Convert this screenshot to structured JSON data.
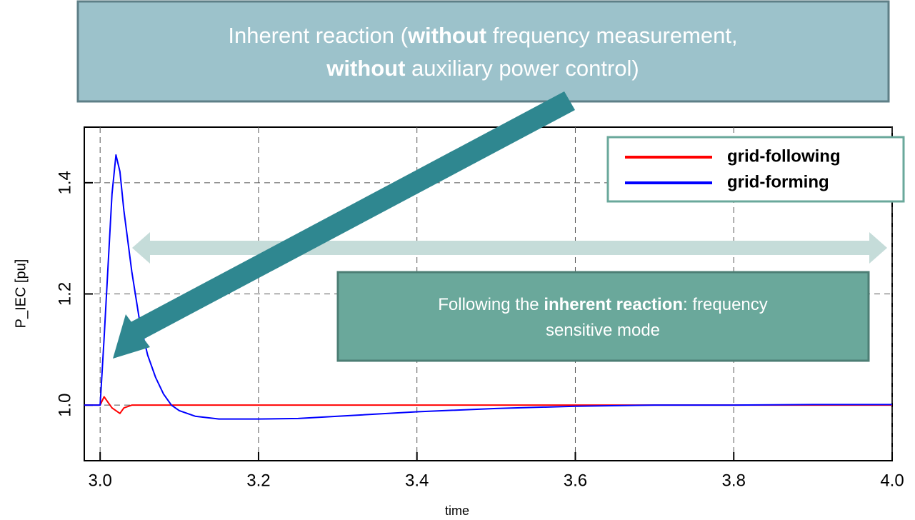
{
  "chart_data": {
    "type": "line",
    "x_label": "time",
    "y_label": "P_IEC [pu]",
    "x": [
      2.98,
      3.0,
      3.005,
      3.01,
      3.015,
      3.02,
      3.025,
      3.03,
      3.04,
      3.05,
      3.06,
      3.07,
      3.08,
      3.09,
      3.1,
      3.12,
      3.15,
      3.2,
      3.25,
      3.3,
      3.4,
      3.5,
      3.6,
      3.7,
      3.8,
      3.9,
      4.0
    ],
    "series": [
      {
        "name": "grid-following",
        "color": "#ff0000",
        "values": [
          1.0,
          1.0,
          1.015,
          1.005,
          0.995,
          0.99,
          0.985,
          0.995,
          1.0,
          1.0,
          1.0,
          1.0,
          1.0,
          1.0,
          1.0,
          1.0,
          1.0,
          1.0,
          1.0,
          1.0,
          1.0,
          1.0,
          1.0,
          1.0,
          1.0,
          1.0,
          1.0
        ]
      },
      {
        "name": "grid-forming",
        "color": "#0000ff",
        "values": [
          1.0,
          1.0,
          1.12,
          1.25,
          1.38,
          1.45,
          1.42,
          1.35,
          1.24,
          1.15,
          1.09,
          1.05,
          1.02,
          1.0,
          0.99,
          0.98,
          0.975,
          0.975,
          0.976,
          0.98,
          0.988,
          0.994,
          0.998,
          1.0,
          1.0,
          1.001,
          1.001
        ]
      }
    ],
    "xlim": [
      2.98,
      4.0
    ],
    "xticks": [
      {
        "value": 3.0,
        "label": "3.0"
      },
      3.2,
      3.4,
      3.6,
      3.8,
      {
        "value": 4.0,
        "label": "4.0"
      }
    ],
    "ylim": [
      0.9,
      1.5
    ],
    "yticks": [
      {
        "value": 1.0,
        "label": "1.0"
      },
      1.2,
      1.4
    ],
    "grid": true,
    "legend": "upper right",
    "annotations": [
      {
        "lines": [
          [
            {
              "text": "Inherent reaction (",
              "bold": false
            },
            {
              "text": "without",
              "bold": true
            },
            {
              "text": " frequency measurement,",
              "bold": false
            }
          ],
          [
            {
              "text": "without",
              "bold": true
            },
            {
              "text": " auxiliary power control)",
              "bold": false
            }
          ]
        ]
      },
      {
        "lines": [
          [
            {
              "text": "Following the ",
              "bold": false
            },
            {
              "text": "inherent reaction",
              "bold": true
            },
            {
              "text": ": frequency",
              "bold": false
            }
          ],
          [
            {
              "text": "sensitive mode",
              "bold": false
            }
          ]
        ]
      }
    ]
  }
}
